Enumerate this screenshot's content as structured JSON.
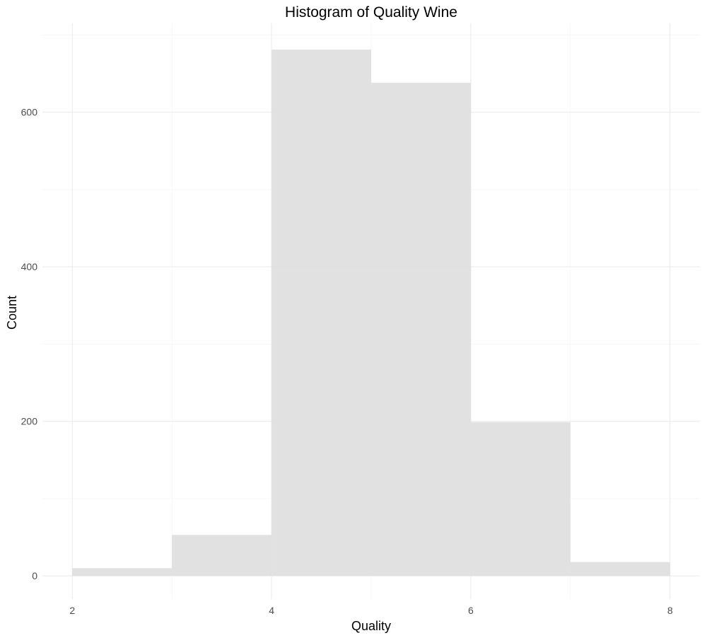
{
  "chart_data": {
    "type": "bar",
    "subtype": "histogram",
    "title": "Histogram of Quality Wine",
    "xlabel": "Quality",
    "ylabel": "Count",
    "bins": [
      {
        "x0": 2,
        "x1": 3,
        "count": 10
      },
      {
        "x0": 3,
        "x1": 4,
        "count": 53
      },
      {
        "x0": 4,
        "x1": 5,
        "count": 681
      },
      {
        "x0": 5,
        "x1": 6,
        "count": 638
      },
      {
        "x0": 6,
        "x1": 7,
        "count": 199
      },
      {
        "x0": 7,
        "x1": 8,
        "count": 18
      }
    ],
    "xlim": [
      1.7,
      8.3
    ],
    "ylim": [
      -30,
      715
    ],
    "xticks": [
      2,
      4,
      6,
      8
    ],
    "yticks": [
      0,
      200,
      400,
      600
    ],
    "grid": true,
    "bar_color": "#dedede",
    "background": "#ffffff"
  }
}
